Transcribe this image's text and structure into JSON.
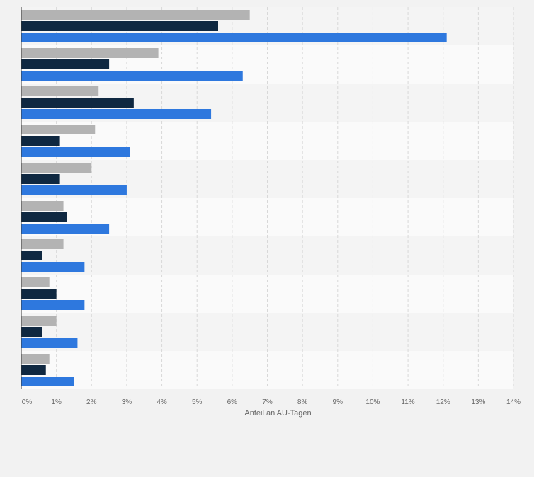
{
  "chart_data": {
    "type": "bar",
    "orientation": "horizontal",
    "categories": [
      "",
      "",
      "",
      "",
      "",
      "",
      "",
      "",
      "",
      ""
    ],
    "series": [
      {
        "color": "#b3b3b3",
        "values": [
          6.5,
          3.9,
          2.2,
          2.1,
          2.0,
          1.2,
          1.2,
          0.8,
          1.0,
          0.8
        ]
      },
      {
        "color": "#0f2841",
        "values": [
          5.6,
          2.5,
          3.2,
          1.1,
          1.1,
          1.3,
          0.6,
          1.0,
          0.6,
          0.7
        ]
      },
      {
        "color": "#2e78de",
        "values": [
          12.1,
          6.3,
          5.4,
          3.1,
          3.0,
          2.5,
          1.8,
          1.8,
          1.6,
          1.5
        ]
      }
    ],
    "xlabel": "Anteil an AU-Tagen",
    "ylabel": "",
    "xlim": [
      0,
      14
    ],
    "xticks": [
      "0%",
      "1%",
      "2%",
      "3%",
      "4%",
      "5%",
      "6%",
      "7%",
      "8%",
      "9%",
      "10%",
      "11%",
      "12%",
      "13%",
      "14%"
    ],
    "grid": true,
    "legend": "none"
  }
}
